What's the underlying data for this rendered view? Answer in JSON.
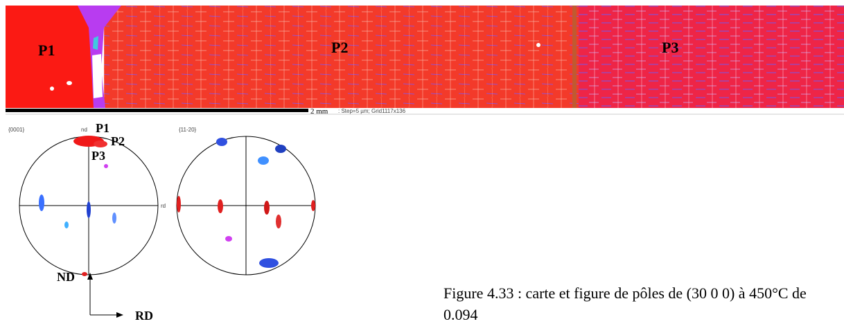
{
  "map": {
    "labels": [
      "P1",
      "P2",
      "P3"
    ],
    "scale_bar": "2 mm",
    "step_info": ": Step=5 µm; Grid1117x136"
  },
  "pole_figures": [
    {
      "title": "{0001}",
      "axis_top": "nd",
      "axis_right": "rd",
      "labels": [
        "P1",
        "P2",
        "P3"
      ]
    },
    {
      "title": "{11-20}"
    }
  ],
  "axes": {
    "vertical": "ND",
    "horizontal": "RD"
  },
  "caption": "Figure 4.33 : carte et figure de pôles de (30 0 0) à 450°C de 0.094"
}
